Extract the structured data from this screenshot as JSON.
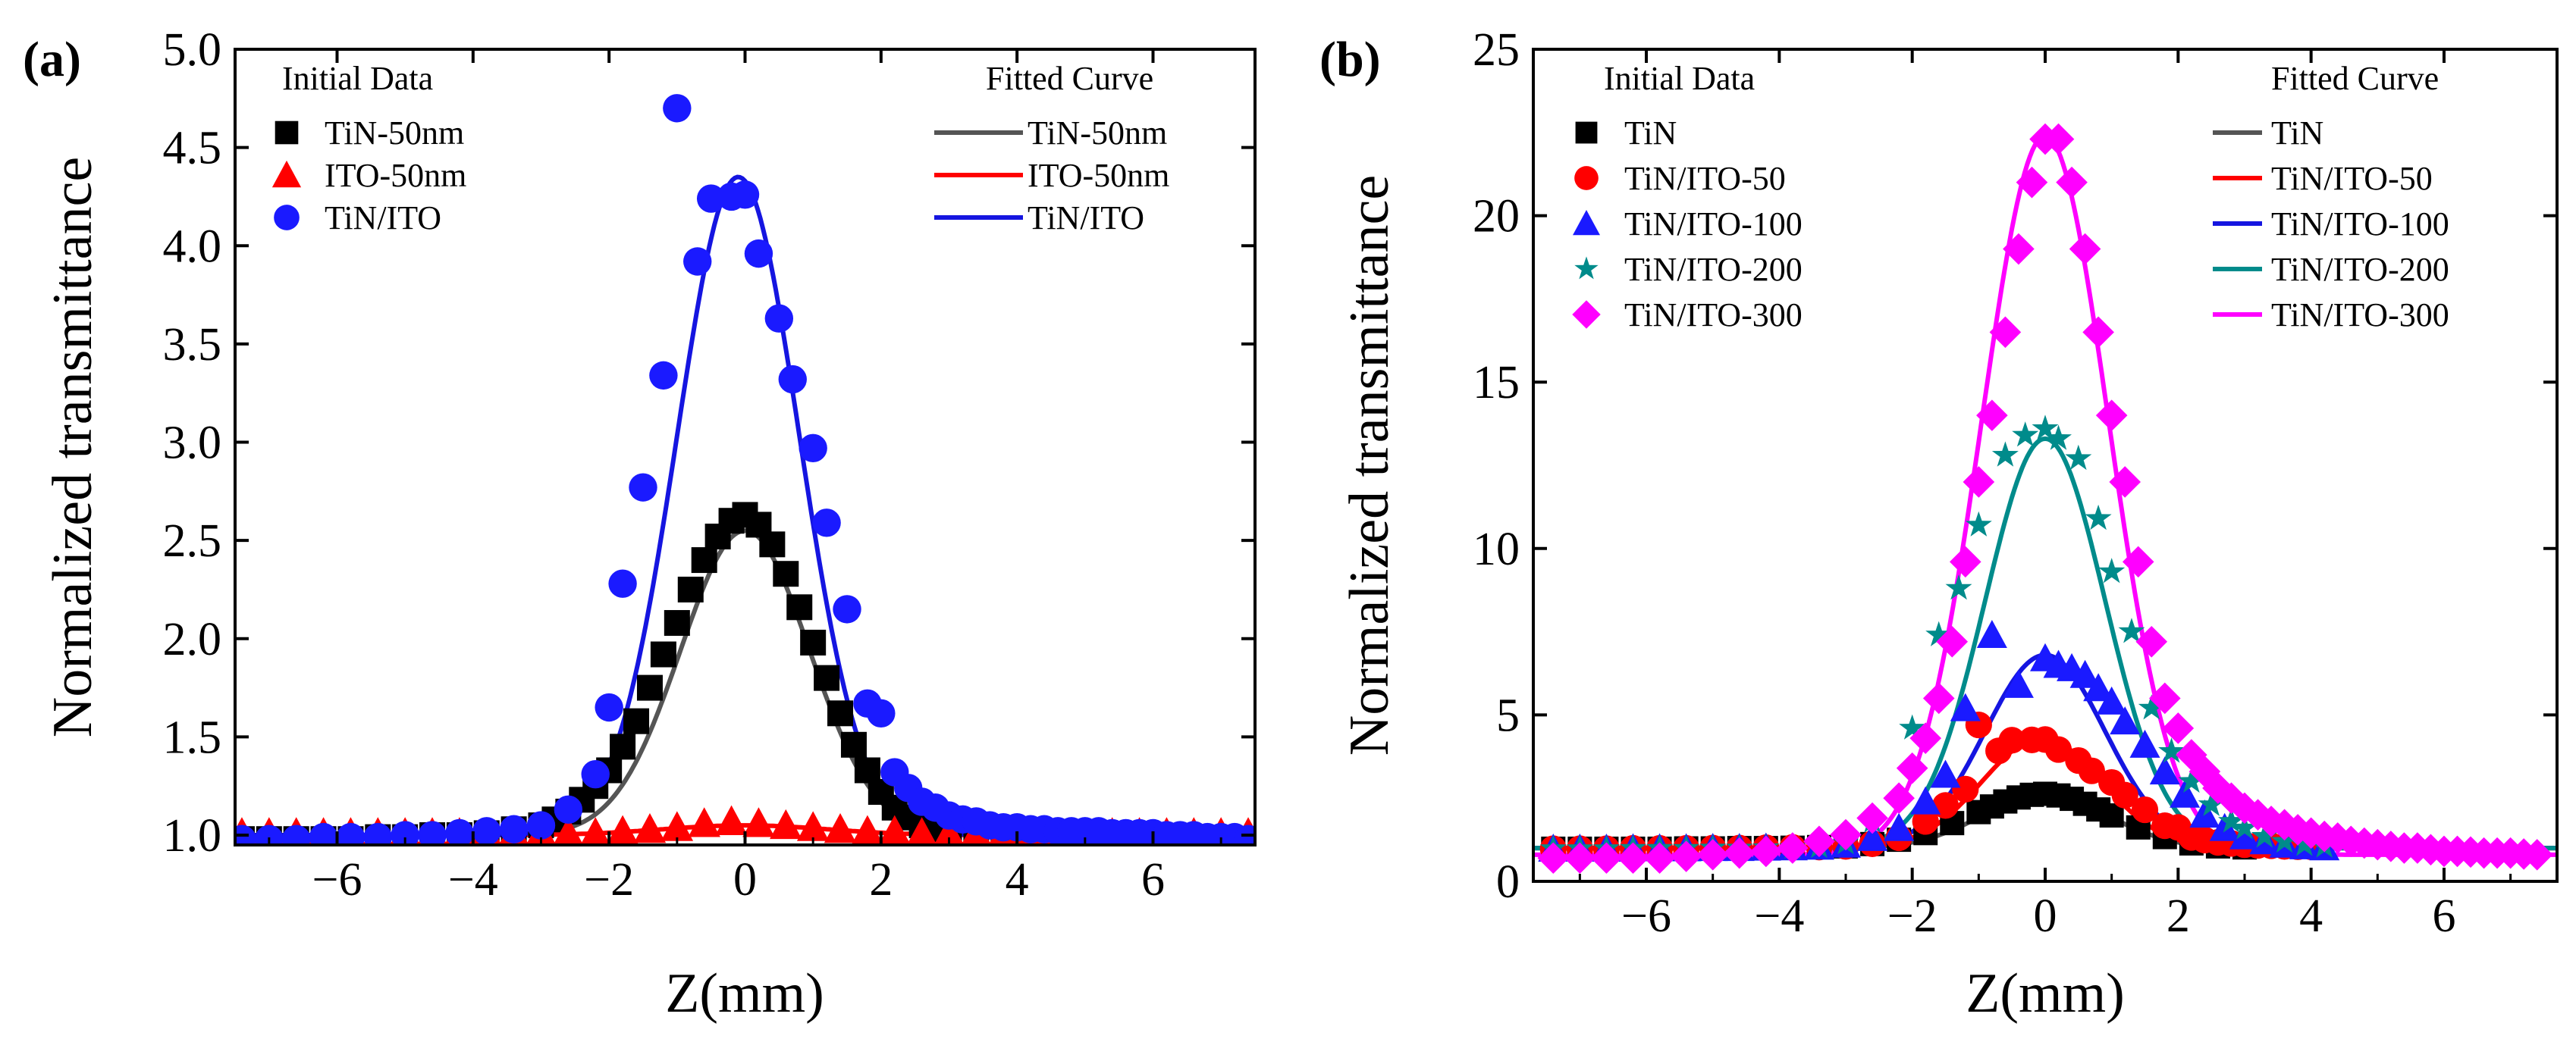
{
  "chart_data": [
    {
      "type": "scatter",
      "panel_label": "(a)",
      "xlabel": "Z(mm)",
      "ylabel": "Normalized transmittance",
      "xlim": [
        -7.5,
        7.5
      ],
      "ylim": [
        0.95,
        5.0
      ],
      "xticks": [
        -6,
        -4,
        -2,
        0,
        2,
        4,
        6
      ],
      "xtick_labels": [
        "−6",
        "−4",
        "−2",
        "0",
        "2",
        "4",
        "6"
      ],
      "yticks": [
        1.0,
        1.5,
        2.0,
        2.5,
        3.0,
        3.5,
        4.0,
        4.5,
        5.0
      ],
      "ytick_labels": [
        "1.0",
        "1.5",
        "2.0",
        "2.5",
        "3.0",
        "3.5",
        "4.0",
        "4.5",
        "5.0"
      ],
      "legend_left_title": "Initial Data",
      "legend_right_title": "Fitted Curve",
      "series": [
        {
          "name": "TiN-50nm",
          "marker": "square",
          "color": "#000000",
          "fit_color": "#555555",
          "fit": {
            "base": 1.0,
            "amp": 1.55,
            "center": 0.0,
            "sigma": 0.95
          },
          "x": [
            -7.4,
            -7.0,
            -6.6,
            -6.2,
            -5.8,
            -5.4,
            -5.0,
            -4.6,
            -4.2,
            -3.8,
            -3.4,
            -3.0,
            -2.8,
            -2.6,
            -2.4,
            -2.2,
            -2.0,
            -1.8,
            -1.6,
            -1.4,
            -1.2,
            -1.0,
            -0.8,
            -0.6,
            -0.4,
            -0.2,
            0.0,
            0.2,
            0.4,
            0.6,
            0.8,
            1.0,
            1.2,
            1.4,
            1.6,
            1.8,
            2.0,
            2.2,
            2.4,
            2.6,
            2.8,
            3.0,
            3.4,
            3.8,
            4.2,
            4.6,
            5.0,
            5.4,
            5.8,
            6.2,
            6.6
          ],
          "y": [
            0.98,
            0.98,
            0.98,
            0.98,
            0.98,
            0.99,
            0.99,
            1.0,
            1.0,
            1.01,
            1.03,
            1.05,
            1.08,
            1.12,
            1.18,
            1.25,
            1.33,
            1.45,
            1.58,
            1.75,
            1.92,
            2.08,
            2.25,
            2.4,
            2.52,
            2.6,
            2.63,
            2.58,
            2.48,
            2.33,
            2.16,
            1.98,
            1.8,
            1.62,
            1.46,
            1.33,
            1.22,
            1.14,
            1.09,
            1.05,
            1.03,
            1.02,
            1.01,
            1.0,
            1.0,
            0.99,
            0.99,
            0.98,
            0.98,
            0.97,
            0.97
          ]
        },
        {
          "name": "ITO-50nm",
          "marker": "triangle",
          "color": "#ff0000",
          "fit_color": "#ff0000",
          "fit": {
            "base": 1.0,
            "amp": 0.05,
            "center": 0.0,
            "sigma": 1.2
          },
          "x": [
            -7.4,
            -7.0,
            -6.6,
            -6.2,
            -5.8,
            -5.4,
            -5.0,
            -4.6,
            -4.2,
            -3.8,
            -3.4,
            -3.0,
            -2.6,
            -2.2,
            -1.8,
            -1.4,
            -1.0,
            -0.6,
            -0.2,
            0.2,
            0.6,
            1.0,
            1.4,
            1.8,
            2.2,
            2.6,
            3.0,
            3.4,
            3.8,
            4.2,
            4.6,
            5.0,
            5.4,
            5.8,
            6.2,
            6.6,
            7.0,
            7.4
          ],
          "y": [
            1.01,
            1.01,
            1.01,
            1.01,
            1.01,
            1.01,
            1.01,
            1.01,
            1.01,
            1.01,
            1.01,
            1.01,
            1.01,
            1.01,
            1.02,
            1.03,
            1.04,
            1.06,
            1.07,
            1.06,
            1.05,
            1.04,
            1.03,
            1.02,
            1.02,
            1.01,
            1.01,
            1.01,
            1.01,
            1.01,
            1.01,
            1.01,
            1.01,
            1.01,
            1.01,
            1.01,
            1.01,
            1.01
          ]
        },
        {
          "name": "TiN/ITO",
          "marker": "circle",
          "color": "#1a1aff",
          "fit_color": "#1515e0",
          "fit": {
            "base": 1.0,
            "amp": 3.35,
            "center": -0.1,
            "sigma": 0.9
          },
          "x": [
            -7.4,
            -7.0,
            -6.6,
            -6.2,
            -5.8,
            -5.4,
            -5.0,
            -4.6,
            -4.2,
            -3.8,
            -3.4,
            -3.0,
            -2.6,
            -2.2,
            -2.0,
            -1.8,
            -1.5,
            -1.2,
            -1.0,
            -0.7,
            -0.5,
            -0.2,
            0.0,
            0.2,
            0.5,
            0.7,
            1.0,
            1.2,
            1.5,
            1.8,
            2.0,
            2.2,
            2.4,
            2.6,
            2.8,
            3.0,
            3.2,
            3.4,
            3.6,
            3.8,
            4.0,
            4.2,
            4.4,
            4.6,
            4.8,
            5.0,
            5.2,
            5.4,
            5.6,
            5.8,
            6.0,
            6.2,
            6.4,
            6.6,
            6.8,
            7.0,
            7.2,
            7.4
          ],
          "y": [
            0.98,
            0.98,
            0.98,
            0.99,
            0.99,
            0.99,
            1.0,
            1.0,
            1.01,
            1.02,
            1.03,
            1.05,
            1.13,
            1.31,
            1.65,
            2.28,
            2.77,
            3.34,
            4.7,
            3.92,
            4.24,
            4.25,
            4.26,
            3.96,
            3.63,
            3.32,
            2.97,
            2.59,
            2.15,
            1.67,
            1.62,
            1.32,
            1.24,
            1.17,
            1.14,
            1.1,
            1.08,
            1.07,
            1.05,
            1.04,
            1.04,
            1.03,
            1.03,
            1.02,
            1.02,
            1.02,
            1.02,
            1.01,
            1.01,
            1.01,
            1.01,
            1.0,
            1.0,
            1.0,
            0.99,
            0.99,
            0.99,
            0.98
          ]
        }
      ]
    },
    {
      "type": "scatter",
      "panel_label": "(b)",
      "xlabel": "Z(mm)",
      "ylabel": "Normalized transmittance",
      "xlim": [
        -7.7,
        7.7
      ],
      "ylim": [
        0,
        25
      ],
      "xticks": [
        -6,
        -4,
        -2,
        0,
        2,
        4,
        6
      ],
      "xtick_labels": [
        "−6",
        "−4",
        "−2",
        "0",
        "2",
        "4",
        "6"
      ],
      "yticks": [
        0,
        5,
        10,
        15,
        20,
        25
      ],
      "ytick_labels": [
        "0",
        "5",
        "10",
        "15",
        "20",
        "25"
      ],
      "legend_left_title": "Initial Data",
      "legend_right_title": "Fitted Curve",
      "series": [
        {
          "name": "TiN",
          "marker": "square",
          "color": "#000000",
          "fit_color": "#555555",
          "fit": {
            "base": 1.0,
            "amp": 1.6,
            "center": 0.0,
            "sigma": 0.95
          },
          "x": [
            -7.4,
            -7.0,
            -6.6,
            -6.2,
            -5.8,
            -5.4,
            -5.0,
            -4.6,
            -4.2,
            -3.8,
            -3.4,
            -3.0,
            -2.6,
            -2.2,
            -1.8,
            -1.4,
            -1.0,
            -0.8,
            -0.6,
            -0.4,
            -0.2,
            0.0,
            0.2,
            0.4,
            0.6,
            0.8,
            1.0,
            1.4,
            1.8,
            2.2,
            2.6,
            3.0
          ],
          "y": [
            0.98,
            0.98,
            0.98,
            0.98,
            0.98,
            0.99,
            0.99,
            1.0,
            1.0,
            1.01,
            1.03,
            1.05,
            1.12,
            1.25,
            1.45,
            1.75,
            2.08,
            2.25,
            2.4,
            2.52,
            2.6,
            2.63,
            2.58,
            2.48,
            2.33,
            2.16,
            1.98,
            1.62,
            1.33,
            1.14,
            1.05,
            1.02
          ]
        },
        {
          "name": "TiN/ITO-50",
          "marker": "circle",
          "color": "#ff0000",
          "fit_color": "#ff0000",
          "fit": {
            "base": 1.0,
            "amp": 3.3,
            "center": -0.05,
            "sigma": 0.9
          },
          "x": [
            -7.4,
            -7.0,
            -6.6,
            -6.2,
            -5.8,
            -5.4,
            -5.0,
            -4.6,
            -4.2,
            -3.8,
            -3.4,
            -3.0,
            -2.6,
            -2.2,
            -1.8,
            -1.5,
            -1.2,
            -1.0,
            -0.7,
            -0.5,
            -0.2,
            0.0,
            0.2,
            0.5,
            0.7,
            1.0,
            1.2,
            1.5,
            1.8,
            2.0,
            2.2,
            2.4,
            2.6,
            2.8,
            3.0,
            3.2,
            3.4,
            3.6,
            3.8,
            4.0
          ],
          "y": [
            0.98,
            0.98,
            0.98,
            0.99,
            0.99,
            0.99,
            1.0,
            1.0,
            1.01,
            1.02,
            1.03,
            1.05,
            1.13,
            1.31,
            1.8,
            2.28,
            2.77,
            4.7,
            3.92,
            4.24,
            4.25,
            4.26,
            3.96,
            3.63,
            3.32,
            2.97,
            2.59,
            2.15,
            1.67,
            1.62,
            1.32,
            1.24,
            1.17,
            1.14,
            1.1,
            1.08,
            1.07,
            1.05,
            1.04,
            1.04
          ]
        },
        {
          "name": "TiN/ITO-100",
          "marker": "triangle",
          "color": "#1a1aff",
          "fit_color": "#1515e0",
          "fit": {
            "base": 1.0,
            "amp": 5.8,
            "center": 0.0,
            "sigma": 0.9
          },
          "x": [
            -7.4,
            -7.0,
            -6.6,
            -6.2,
            -5.8,
            -5.4,
            -5.0,
            -4.6,
            -4.2,
            -3.8,
            -3.4,
            -3.0,
            -2.6,
            -2.2,
            -1.8,
            -1.5,
            -1.2,
            -0.8,
            -0.4,
            0.0,
            0.2,
            0.4,
            0.6,
            0.8,
            1.0,
            1.2,
            1.5,
            1.8,
            2.1,
            2.4,
            2.7,
            3.0,
            3.3,
            3.6,
            3.9,
            4.2
          ],
          "y": [
            0.98,
            0.98,
            0.98,
            0.99,
            0.99,
            0.99,
            1.0,
            1.0,
            1.01,
            1.02,
            1.04,
            1.1,
            1.3,
            1.6,
            2.4,
            3.2,
            5.2,
            7.4,
            5.9,
            6.7,
            6.5,
            6.4,
            6.2,
            5.8,
            5.4,
            4.8,
            4.1,
            3.3,
            2.6,
            2.0,
            1.6,
            1.35,
            1.2,
            1.1,
            1.05,
            1.02
          ]
        },
        {
          "name": "TiN/ITO-200",
          "marker": "star",
          "color": "#008b8b",
          "fit_color": "#008b8b",
          "fit": {
            "base": 1.0,
            "amp": 12.3,
            "center": 0.0,
            "sigma": 0.9
          },
          "x": [
            -7.4,
            -7.0,
            -6.6,
            -6.2,
            -5.8,
            -5.4,
            -5.0,
            -4.6,
            -4.2,
            -3.8,
            -3.4,
            -3.0,
            -2.6,
            -2.0,
            -1.6,
            -1.3,
            -1.0,
            -0.6,
            -0.3,
            0.0,
            0.2,
            0.5,
            0.8,
            1.0,
            1.3,
            1.6,
            1.9,
            2.2,
            2.5,
            2.8,
            3.0,
            3.3,
            3.6,
            3.9,
            4.2
          ],
          "y": [
            0.98,
            0.98,
            0.98,
            0.99,
            0.99,
            0.99,
            1.0,
            1.0,
            1.01,
            1.02,
            1.04,
            1.15,
            1.8,
            4.6,
            7.4,
            8.8,
            10.7,
            12.8,
            13.4,
            13.6,
            13.3,
            12.7,
            10.9,
            9.3,
            7.5,
            5.2,
            3.9,
            3.0,
            2.3,
            1.8,
            1.6,
            1.35,
            1.2,
            1.1,
            1.05
          ]
        },
        {
          "name": "TiN/ITO-300",
          "marker": "diamond",
          "color": "#ff00ff",
          "fit_color": "#ff00ff",
          "fit": {
            "base": 0.8,
            "amp": 21.6,
            "center": 0.0,
            "sigma": 0.95
          },
          "x": [
            -7.4,
            -7.0,
            -6.6,
            -6.2,
            -5.8,
            -5.4,
            -5.0,
            -4.6,
            -4.2,
            -3.8,
            -3.4,
            -3.0,
            -2.6,
            -2.2,
            -2.0,
            -1.8,
            -1.6,
            -1.4,
            -1.2,
            -1.0,
            -0.8,
            -0.6,
            -0.4,
            -0.2,
            0.0,
            0.2,
            0.4,
            0.6,
            0.8,
            1.0,
            1.2,
            1.4,
            1.6,
            1.8,
            2.0,
            2.2,
            2.4,
            2.6,
            2.8,
            3.0,
            3.2,
            3.4,
            3.6,
            3.8,
            4.0,
            4.2,
            4.4,
            4.6,
            4.8,
            5.0,
            5.2,
            5.4,
            5.6,
            5.8,
            6.0,
            6.2,
            6.4,
            6.6,
            6.8,
            7.0,
            7.2,
            7.4
          ],
          "y": [
            0.7,
            0.7,
            0.7,
            0.7,
            0.7,
            0.75,
            0.8,
            0.85,
            0.9,
            1.0,
            1.2,
            1.4,
            1.9,
            2.5,
            3.4,
            4.3,
            5.5,
            7.2,
            9.6,
            12.0,
            14.0,
            16.5,
            19.0,
            21.0,
            22.3,
            22.3,
            21.0,
            19.0,
            16.5,
            14.0,
            12.0,
            9.6,
            7.2,
            5.5,
            4.6,
            3.8,
            3.3,
            2.8,
            2.5,
            2.2,
            2.0,
            1.8,
            1.7,
            1.55,
            1.45,
            1.35,
            1.3,
            1.2,
            1.15,
            1.1,
            1.05,
            1.0,
            1.0,
            0.95,
            0.9,
            0.9,
            0.88,
            0.85,
            0.85,
            0.85,
            0.82,
            0.8
          ]
        }
      ]
    }
  ]
}
